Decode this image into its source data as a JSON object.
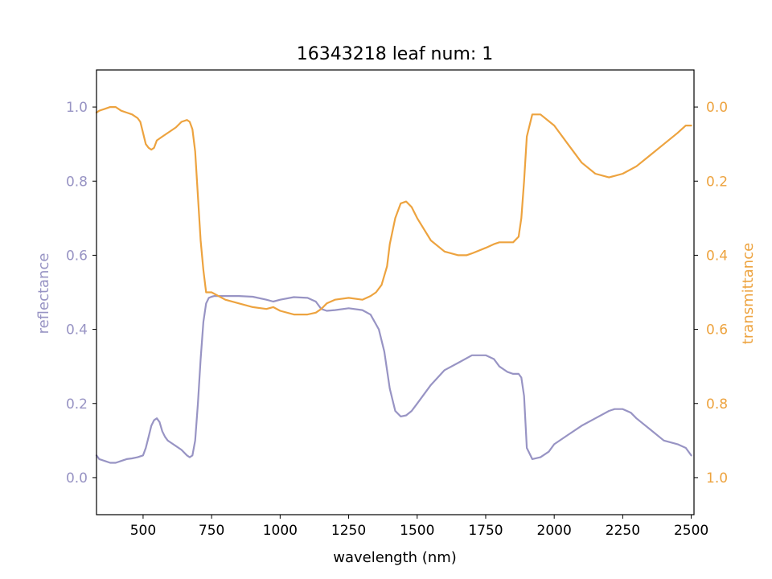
{
  "chart_data": {
    "type": "line",
    "title": "16343218 leaf num: 1",
    "xlabel": "wavelength (nm)",
    "x_ticks": [
      500,
      750,
      1000,
      1250,
      1500,
      1750,
      2000,
      2250,
      2500
    ],
    "xlim": [
      330,
      2510
    ],
    "left_axis": {
      "label": "reflectance",
      "color": "#9894c4",
      "ticks": [
        "0.0",
        "0.2",
        "0.4",
        "0.6",
        "0.8",
        "1.0"
      ],
      "ylim": [
        -0.1,
        1.1
      ],
      "inverted": false
    },
    "right_axis": {
      "label": "transmittance",
      "color": "#eda33f",
      "ticks": [
        "0.0",
        "0.2",
        "0.4",
        "0.6",
        "0.8",
        "1.0"
      ],
      "ylim": [
        -0.1,
        1.1
      ],
      "inverted": true
    },
    "series": [
      {
        "axis": "left",
        "color": "#9894c4",
        "x": [
          330,
          340,
          360,
          380,
          400,
          420,
          440,
          460,
          480,
          500,
          510,
          520,
          530,
          540,
          550,
          560,
          570,
          580,
          590,
          600,
          620,
          640,
          660,
          670,
          680,
          690,
          700,
          710,
          720,
          730,
          740,
          750,
          760,
          800,
          850,
          900,
          950,
          975,
          1000,
          1050,
          1100,
          1130,
          1150,
          1170,
          1200,
          1250,
          1300,
          1330,
          1360,
          1380,
          1400,
          1420,
          1440,
          1460,
          1480,
          1500,
          1550,
          1600,
          1650,
          1700,
          1750,
          1780,
          1800,
          1830,
          1850,
          1870,
          1880,
          1890,
          1900,
          1920,
          1950,
          1980,
          2000,
          2050,
          2100,
          2150,
          2200,
          2220,
          2250,
          2280,
          2300,
          2350,
          2400,
          2450,
          2480,
          2500
        ],
        "y": [
          0.06,
          0.05,
          0.045,
          0.04,
          0.04,
          0.045,
          0.05,
          0.052,
          0.055,
          0.06,
          0.08,
          0.11,
          0.14,
          0.155,
          0.16,
          0.15,
          0.125,
          0.11,
          0.1,
          0.095,
          0.085,
          0.075,
          0.06,
          0.055,
          0.06,
          0.1,
          0.2,
          0.32,
          0.42,
          0.47,
          0.485,
          0.488,
          0.49,
          0.49,
          0.49,
          0.488,
          0.48,
          0.475,
          0.48,
          0.487,
          0.485,
          0.475,
          0.455,
          0.45,
          0.452,
          0.457,
          0.452,
          0.44,
          0.4,
          0.34,
          0.24,
          0.18,
          0.165,
          0.168,
          0.18,
          0.2,
          0.25,
          0.29,
          0.31,
          0.33,
          0.33,
          0.32,
          0.3,
          0.285,
          0.28,
          0.28,
          0.27,
          0.22,
          0.08,
          0.05,
          0.055,
          0.07,
          0.09,
          0.115,
          0.14,
          0.16,
          0.18,
          0.185,
          0.185,
          0.175,
          0.16,
          0.13,
          0.1,
          0.09,
          0.08,
          0.06
        ]
      },
      {
        "axis": "right",
        "color": "#eda33f",
        "x": [
          330,
          340,
          360,
          380,
          400,
          420,
          440,
          460,
          480,
          490,
          500,
          510,
          520,
          530,
          540,
          550,
          570,
          600,
          620,
          640,
          660,
          670,
          680,
          690,
          700,
          710,
          720,
          730,
          740,
          750,
          800,
          850,
          900,
          950,
          975,
          1000,
          1050,
          1100,
          1130,
          1150,
          1170,
          1200,
          1250,
          1300,
          1330,
          1350,
          1370,
          1390,
          1400,
          1420,
          1440,
          1460,
          1480,
          1500,
          1550,
          1600,
          1650,
          1680,
          1700,
          1750,
          1780,
          1800,
          1830,
          1850,
          1870,
          1880,
          1890,
          1900,
          1920,
          1950,
          2000,
          2050,
          2100,
          2150,
          2200,
          2250,
          2300,
          2350,
          2400,
          2450,
          2480,
          2500
        ],
        "y": [
          0.015,
          0.01,
          0.005,
          0.0,
          0.0,
          0.01,
          0.015,
          0.02,
          0.03,
          0.04,
          0.07,
          0.1,
          0.11,
          0.115,
          0.11,
          0.09,
          0.08,
          0.065,
          0.055,
          0.04,
          0.035,
          0.04,
          0.06,
          0.12,
          0.24,
          0.36,
          0.44,
          0.5,
          0.5,
          0.5,
          0.52,
          0.53,
          0.54,
          0.545,
          0.54,
          0.55,
          0.56,
          0.56,
          0.555,
          0.545,
          0.53,
          0.52,
          0.515,
          0.52,
          0.51,
          0.5,
          0.48,
          0.43,
          0.37,
          0.3,
          0.26,
          0.255,
          0.27,
          0.3,
          0.36,
          0.39,
          0.4,
          0.4,
          0.395,
          0.38,
          0.37,
          0.365,
          0.365,
          0.365,
          0.35,
          0.3,
          0.2,
          0.08,
          0.02,
          0.02,
          0.05,
          0.1,
          0.15,
          0.18,
          0.19,
          0.18,
          0.16,
          0.13,
          0.1,
          0.07,
          0.05,
          0.05
        ]
      }
    ]
  }
}
